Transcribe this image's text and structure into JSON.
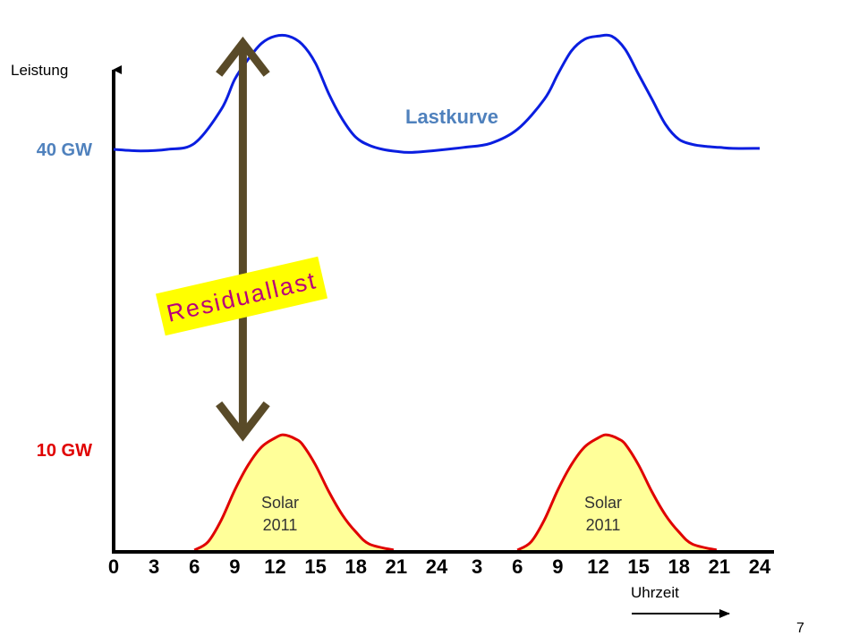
{
  "page": {
    "number": "7"
  },
  "chart_data": {
    "type": "area",
    "title": "",
    "ylabel": "Leistung",
    "xlabel": "Uhrzeit",
    "x_ticks": [
      "0",
      "3",
      "6",
      "9",
      "12",
      "15",
      "18",
      "21",
      "24",
      "3",
      "6",
      "9",
      "12",
      "15",
      "18",
      "21",
      "24"
    ],
    "x_range_hours": [
      0,
      48
    ],
    "y_ticks": [
      {
        "label": "40 GW",
        "value": 40,
        "color": "#4f81bd"
      },
      {
        "label": "10 GW",
        "value": 10,
        "color": "#e00000"
      }
    ],
    "ylim": [
      0,
      50
    ],
    "grid": false,
    "series": [
      {
        "name": "Lastkurve",
        "color": "#0a1ee0",
        "label_color": "#4f81bd",
        "x": [
          0,
          2,
          4,
          6,
          8,
          9,
          10,
          11,
          12,
          13,
          14,
          15,
          16,
          17,
          18,
          19,
          20,
          21,
          22,
          24,
          26,
          28,
          30,
          32,
          33,
          34,
          35,
          36,
          37,
          38,
          39,
          40,
          41,
          42,
          43,
          44,
          45,
          46,
          48
        ],
        "y": [
          40,
          39.85,
          40,
          40.6,
          44,
          47,
          49,
          50.6,
          51.3,
          51.3,
          50.5,
          48.6,
          45.5,
          43,
          41.2,
          40.4,
          40,
          39.8,
          39.7,
          39.9,
          40.2,
          40.6,
          42,
          45,
          47.5,
          49.8,
          51,
          51.3,
          51.3,
          50,
          47.5,
          45,
          42.5,
          41,
          40.5,
          40.3,
          40.2,
          40.1,
          40.1
        ]
      },
      {
        "name": "Solar 2011",
        "label_lines": [
          "Solar",
          "2011"
        ],
        "color": "#e00000",
        "fill": "#ffff99",
        "days": [
          {
            "x": [
              6,
              7,
              8,
              9,
              10,
              11,
              12,
              12.5,
              13,
              13.5,
              14,
              15,
              16,
              17,
              18,
              19,
              20.8
            ],
            "y": [
              0,
              0.8,
              3,
              6,
              8.5,
              10.3,
              11.2,
              11.5,
              11.4,
              11.1,
              10.6,
              8.5,
              5.8,
              3.5,
              1.8,
              0.6,
              0
            ]
          },
          {
            "x": [
              30,
              31,
              32,
              33,
              34,
              35,
              36,
              36.5,
              37,
              37.5,
              38,
              39,
              40,
              41,
              42,
              43,
              44.8
            ],
            "y": [
              0,
              0.8,
              3,
              6,
              8.5,
              10.3,
              11.2,
              11.5,
              11.4,
              11.1,
              10.6,
              8.5,
              5.8,
              3.5,
              1.8,
              0.6,
              0
            ]
          }
        ]
      }
    ],
    "annotations": {
      "residual_label": "Residuallast",
      "residual_arrow": {
        "x_hour": 9.6,
        "from_value": 11.5,
        "to_value": 50.6,
        "color": "#594a28"
      },
      "residual_box_color": "#ffff00",
      "residual_text_color": "#b8007a"
    }
  }
}
